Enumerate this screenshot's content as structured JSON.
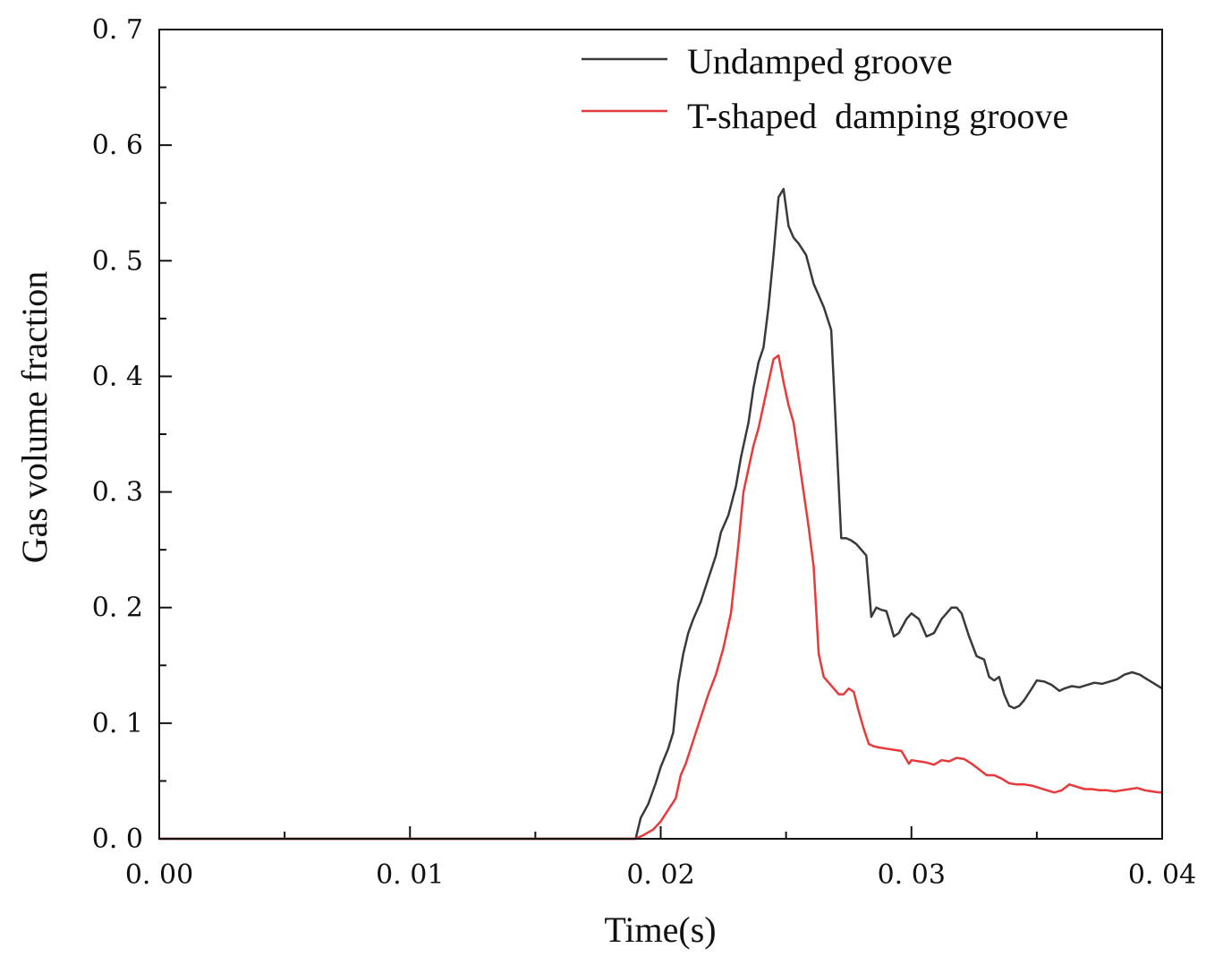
{
  "chart_data": {
    "type": "line",
    "title": "",
    "xlabel": "Time(s)",
    "ylabel": "Gas volume fraction",
    "xlim": [
      0.0,
      0.04
    ],
    "ylim": [
      0.0,
      0.7
    ],
    "xticks": [
      0.0,
      0.01,
      0.02,
      0.03,
      0.04
    ],
    "xtick_labels": [
      "0. 00",
      "0. 01",
      "0. 02",
      "0. 03",
      "0. 04"
    ],
    "yticks": [
      0.0,
      0.1,
      0.2,
      0.3,
      0.4,
      0.5,
      0.6,
      0.7
    ],
    "ytick_labels": [
      "0. 0",
      "0. 1",
      "0. 2",
      "0. 3",
      "0. 4",
      "0. 5",
      "0. 6",
      "0. 7"
    ],
    "grid": false,
    "legend_position": "top-right",
    "series": [
      {
        "name": "Undamped groove",
        "color": "#3a3a3a",
        "x": [
          0.0,
          0.019,
          0.0192,
          0.0195,
          0.0198,
          0.02,
          0.0203,
          0.0205,
          0.0207,
          0.0209,
          0.0211,
          0.0213,
          0.0216,
          0.0219,
          0.0222,
          0.0224,
          0.0227,
          0.023,
          0.0232,
          0.0235,
          0.0237,
          0.0239,
          0.0241,
          0.0243,
          0.0245,
          0.0247,
          0.0249,
          0.0251,
          0.0253,
          0.0255,
          0.0258,
          0.0261,
          0.0263,
          0.0265,
          0.0268,
          0.027,
          0.0272,
          0.0274,
          0.0276,
          0.0278,
          0.028,
          0.0282,
          0.0284,
          0.0286,
          0.0288,
          0.029,
          0.0291,
          0.0293,
          0.0295,
          0.0298,
          0.03,
          0.0303,
          0.0306,
          0.0309,
          0.0312,
          0.0314,
          0.0316,
          0.0318,
          0.032,
          0.0323,
          0.0326,
          0.0329,
          0.0331,
          0.0333,
          0.0335,
          0.0337,
          0.0339,
          0.0341,
          0.0343,
          0.0345,
          0.0348,
          0.035,
          0.0353,
          0.0356,
          0.0359,
          0.0361,
          0.0364,
          0.0367,
          0.037,
          0.0373,
          0.0376,
          0.0379,
          0.0382,
          0.0385,
          0.0388,
          0.0391,
          0.0394,
          0.0397,
          0.04
        ],
        "y": [
          0.0,
          0.0,
          0.018,
          0.03,
          0.048,
          0.062,
          0.078,
          0.092,
          0.135,
          0.16,
          0.178,
          0.19,
          0.205,
          0.225,
          0.245,
          0.265,
          0.28,
          0.305,
          0.33,
          0.36,
          0.39,
          0.412,
          0.425,
          0.46,
          0.505,
          0.555,
          0.562,
          0.53,
          0.52,
          0.515,
          0.505,
          0.48,
          0.47,
          0.46,
          0.44,
          0.35,
          0.26,
          0.26,
          0.258,
          0.255,
          0.25,
          0.245,
          0.192,
          0.2,
          0.198,
          0.197,
          0.19,
          0.175,
          0.178,
          0.19,
          0.195,
          0.19,
          0.175,
          0.178,
          0.19,
          0.195,
          0.2,
          0.2,
          0.195,
          0.175,
          0.158,
          0.155,
          0.14,
          0.137,
          0.14,
          0.125,
          0.115,
          0.113,
          0.115,
          0.12,
          0.13,
          0.137,
          0.136,
          0.133,
          0.128,
          0.13,
          0.132,
          0.131,
          0.133,
          0.135,
          0.134,
          0.136,
          0.138,
          0.142,
          0.144,
          0.142,
          0.138,
          0.134,
          0.13
        ],
        "y_note": "values estimated from gridlines"
      },
      {
        "name": "T-shaped  damping groove",
        "color": "#e8393b",
        "x": [
          0.0,
          0.019,
          0.0193,
          0.0197,
          0.02,
          0.0203,
          0.0206,
          0.0208,
          0.021,
          0.0213,
          0.0216,
          0.0219,
          0.0222,
          0.0225,
          0.0228,
          0.0231,
          0.0233,
          0.0235,
          0.0237,
          0.0239,
          0.0241,
          0.0243,
          0.0245,
          0.0247,
          0.0249,
          0.0251,
          0.0253,
          0.0255,
          0.0257,
          0.0259,
          0.0261,
          0.0263,
          0.0265,
          0.0267,
          0.0269,
          0.0271,
          0.0273,
          0.0275,
          0.0277,
          0.0279,
          0.0281,
          0.0283,
          0.0285,
          0.0287,
          0.029,
          0.0293,
          0.0296,
          0.0299,
          0.03,
          0.0303,
          0.0306,
          0.0309,
          0.0312,
          0.0315,
          0.0318,
          0.0321,
          0.0324,
          0.0327,
          0.033,
          0.0333,
          0.0336,
          0.0339,
          0.0342,
          0.0345,
          0.0348,
          0.0351,
          0.0354,
          0.0357,
          0.036,
          0.0363,
          0.0366,
          0.0369,
          0.0372,
          0.0375,
          0.0378,
          0.0381,
          0.0384,
          0.0387,
          0.039,
          0.0393,
          0.0396,
          0.0399,
          0.04
        ],
        "y": [
          0.0,
          0.0,
          0.003,
          0.008,
          0.015,
          0.025,
          0.035,
          0.055,
          0.065,
          0.085,
          0.105,
          0.125,
          0.142,
          0.165,
          0.195,
          0.255,
          0.3,
          0.32,
          0.34,
          0.355,
          0.375,
          0.395,
          0.415,
          0.418,
          0.395,
          0.375,
          0.36,
          0.33,
          0.3,
          0.27,
          0.235,
          0.16,
          0.14,
          0.135,
          0.13,
          0.125,
          0.125,
          0.13,
          0.127,
          0.11,
          0.095,
          0.082,
          0.08,
          0.079,
          0.078,
          0.077,
          0.076,
          0.065,
          0.068,
          0.067,
          0.066,
          0.064,
          0.068,
          0.067,
          0.07,
          0.069,
          0.065,
          0.06,
          0.055,
          0.055,
          0.052,
          0.048,
          0.047,
          0.047,
          0.046,
          0.044,
          0.042,
          0.04,
          0.042,
          0.047,
          0.045,
          0.043,
          0.043,
          0.042,
          0.042,
          0.041,
          0.042,
          0.043,
          0.044,
          0.042,
          0.041,
          0.04,
          0.04
        ],
        "y_note": "values estimated from gridlines"
      }
    ]
  }
}
